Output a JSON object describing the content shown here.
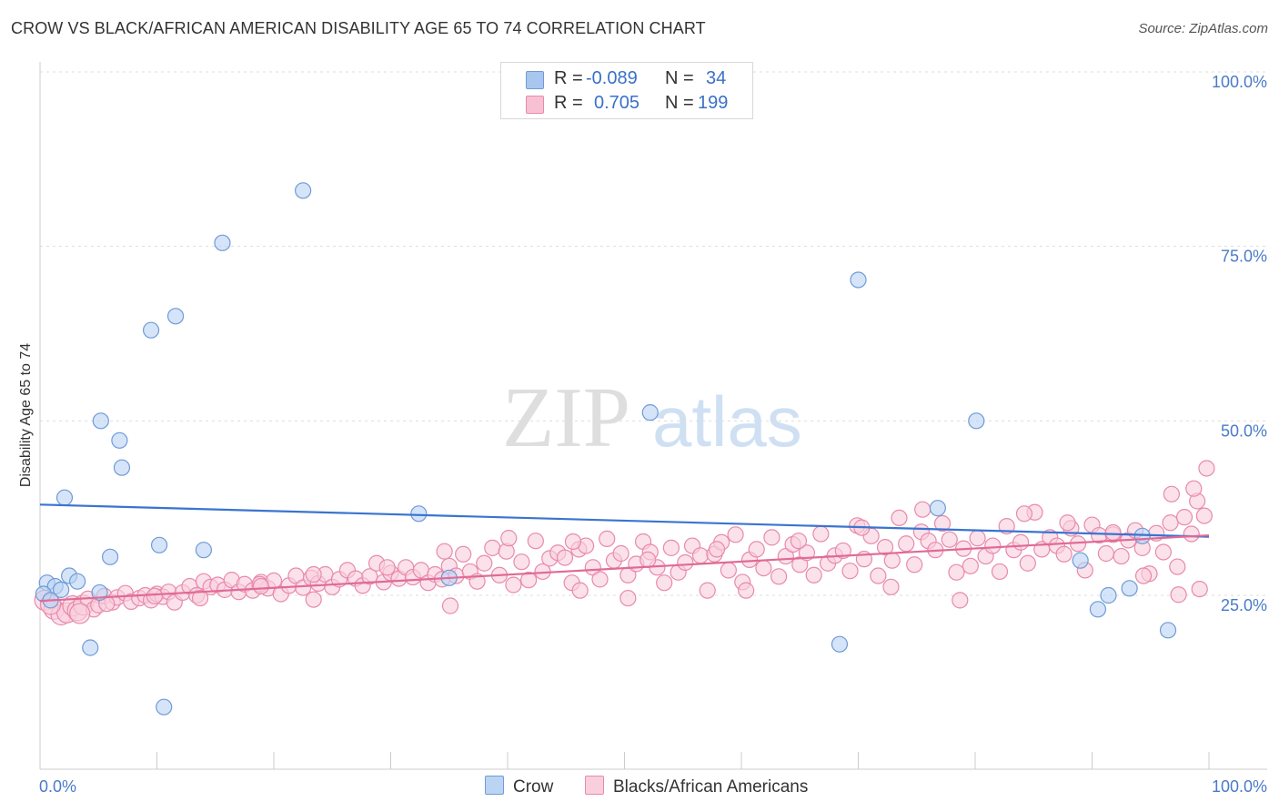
{
  "title": "CROW VS BLACK/AFRICAN AMERICAN DISABILITY AGE 65 TO 74 CORRELATION CHART",
  "source": "Source: ZipAtlas.com",
  "watermark": {
    "zip": "ZIP",
    "atlas": "atlas"
  },
  "legend_top": [
    {
      "r_label": "R =",
      "r_value": "-0.089",
      "n_label": "N =",
      "n_value": "34",
      "color": "#a9c6ef",
      "border": "#6f9bd6"
    },
    {
      "r_label": "R =",
      "r_value": "0.705",
      "n_label": "N =",
      "n_value": "199",
      "color": "#f7c1d3",
      "border": "#e88aab"
    }
  ],
  "legend_bottom": [
    {
      "label": "Crow",
      "color": "#bcd4f3",
      "border": "#6f9bd6"
    },
    {
      "label": "Blacks/African Americans",
      "color": "#f9cfdd",
      "border": "#e88aab"
    }
  ],
  "chart_data": {
    "type": "scatter",
    "ylabel": "Disability Age 65 to 74",
    "xlabel": "",
    "x_tick_labels": [
      "0.0%",
      "100.0%"
    ],
    "y_tick_labels": [
      "25.0%",
      "50.0%",
      "75.0%",
      "100.0%"
    ],
    "y_ticks": [
      25,
      50,
      75,
      100
    ],
    "xlim": [
      0,
      100
    ],
    "ylim": [
      0,
      102
    ],
    "grid": "horizontal dashed",
    "series": [
      {
        "name": "Crow",
        "color": "#6f9bd6",
        "fill": "#bcd4f3",
        "trend": {
          "x": [
            0,
            100
          ],
          "y": [
            38.0,
            33.4
          ]
        },
        "points": [
          [
            22.5,
            83
          ],
          [
            15.6,
            75.5
          ],
          [
            11.6,
            65
          ],
          [
            9.5,
            63
          ],
          [
            5.2,
            50
          ],
          [
            6.8,
            47.2
          ],
          [
            7.0,
            43.3
          ],
          [
            2.1,
            39
          ],
          [
            10.2,
            32.2
          ],
          [
            14.0,
            31.5
          ],
          [
            6.0,
            30.5
          ],
          [
            2.5,
            27.8
          ],
          [
            0.6,
            26.8
          ],
          [
            1.3,
            26.3
          ],
          [
            3.2,
            27.0
          ],
          [
            1.8,
            25.8
          ],
          [
            5.1,
            25.4
          ],
          [
            4.3,
            17.5
          ],
          [
            10.6,
            9.0
          ],
          [
            0.3,
            25.2
          ],
          [
            52.2,
            51.2
          ],
          [
            32.4,
            36.7
          ],
          [
            70.0,
            70.2
          ],
          [
            80.1,
            50.0
          ],
          [
            76.8,
            37.5
          ],
          [
            94.3,
            33.5
          ],
          [
            89.0,
            30.0
          ],
          [
            91.4,
            25.0
          ],
          [
            90.5,
            23.0
          ],
          [
            93.2,
            26.0
          ],
          [
            96.5,
            20.0
          ],
          [
            68.4,
            18.0
          ],
          [
            35.0,
            27.5
          ],
          [
            0.9,
            24.3
          ]
        ]
      },
      {
        "name": "Blacks/African Americans",
        "color": "#e88aab",
        "fill": "#f9cfdd",
        "trend": {
          "x": [
            0,
            100
          ],
          "y": [
            24.2,
            33.6
          ]
        },
        "points": [
          [
            0.4,
            24.3
          ],
          [
            1.2,
            23.0
          ],
          [
            1.8,
            22.2
          ],
          [
            2.3,
            22.5
          ],
          [
            2.8,
            23.5
          ],
          [
            3.2,
            22.8
          ],
          [
            3.7,
            23.6
          ],
          [
            4.1,
            24.5
          ],
          [
            4.6,
            23.0
          ],
          [
            5.0,
            23.6
          ],
          [
            5.5,
            24.9
          ],
          [
            6.2,
            24.0
          ],
          [
            6.6,
            24.7
          ],
          [
            7.3,
            25.3
          ],
          [
            7.8,
            24.1
          ],
          [
            8.5,
            24.6
          ],
          [
            9.0,
            25.0
          ],
          [
            9.5,
            24.3
          ],
          [
            10.0,
            25.2
          ],
          [
            10.5,
            24.8
          ],
          [
            11.0,
            25.5
          ],
          [
            11.5,
            24.0
          ],
          [
            12.2,
            25.4
          ],
          [
            12.8,
            26.3
          ],
          [
            13.4,
            25.0
          ],
          [
            14.0,
            27.0
          ],
          [
            14.6,
            26.2
          ],
          [
            15.2,
            26.5
          ],
          [
            15.8,
            25.8
          ],
          [
            16.4,
            27.2
          ],
          [
            17.0,
            25.5
          ],
          [
            17.5,
            26.6
          ],
          [
            18.2,
            25.7
          ],
          [
            18.9,
            26.9
          ],
          [
            19.5,
            26.0
          ],
          [
            20.0,
            27.1
          ],
          [
            20.6,
            25.2
          ],
          [
            21.3,
            26.4
          ],
          [
            21.9,
            27.8
          ],
          [
            22.5,
            26.1
          ],
          [
            23.2,
            27.5
          ],
          [
            23.8,
            26.7
          ],
          [
            24.4,
            28.0
          ],
          [
            25.0,
            26.2
          ],
          [
            25.6,
            27.3
          ],
          [
            26.3,
            28.6
          ],
          [
            27.0,
            27.4
          ],
          [
            27.6,
            26.4
          ],
          [
            28.2,
            27.7
          ],
          [
            28.8,
            29.6
          ],
          [
            29.4,
            26.9
          ],
          [
            30.0,
            28.2
          ],
          [
            30.7,
            27.4
          ],
          [
            31.3,
            29.0
          ],
          [
            31.9,
            27.6
          ],
          [
            32.6,
            28.6
          ],
          [
            33.2,
            26.8
          ],
          [
            33.8,
            28.0
          ],
          [
            34.4,
            27.3
          ],
          [
            35.0,
            29.2
          ],
          [
            35.6,
            27.8
          ],
          [
            36.2,
            30.9
          ],
          [
            36.8,
            28.4
          ],
          [
            37.4,
            27.0
          ],
          [
            38.0,
            29.6
          ],
          [
            38.7,
            31.8
          ],
          [
            39.3,
            27.9
          ],
          [
            39.9,
            31.3
          ],
          [
            40.5,
            26.5
          ],
          [
            41.2,
            29.8
          ],
          [
            41.8,
            27.2
          ],
          [
            42.4,
            32.8
          ],
          [
            43.0,
            28.4
          ],
          [
            43.6,
            30.3
          ],
          [
            44.3,
            31.1
          ],
          [
            44.9,
            30.4
          ],
          [
            45.5,
            26.8
          ],
          [
            46.1,
            31.6
          ],
          [
            46.7,
            32.1
          ],
          [
            47.3,
            29.0
          ],
          [
            47.9,
            27.3
          ],
          [
            48.5,
            33.1
          ],
          [
            49.1,
            30.0
          ],
          [
            49.7,
            31.0
          ],
          [
            50.3,
            27.9
          ],
          [
            51.0,
            29.5
          ],
          [
            51.6,
            32.7
          ],
          [
            52.2,
            31.2
          ],
          [
            52.8,
            29.0
          ],
          [
            53.4,
            26.8
          ],
          [
            54.0,
            31.8
          ],
          [
            54.6,
            28.3
          ],
          [
            55.2,
            29.7
          ],
          [
            55.8,
            32.1
          ],
          [
            56.5,
            30.7
          ],
          [
            57.1,
            25.7
          ],
          [
            57.7,
            30.9
          ],
          [
            58.3,
            32.6
          ],
          [
            58.9,
            28.6
          ],
          [
            59.5,
            33.7
          ],
          [
            60.1,
            26.9
          ],
          [
            60.7,
            30.1
          ],
          [
            61.3,
            31.6
          ],
          [
            61.9,
            28.9
          ],
          [
            62.6,
            33.3
          ],
          [
            63.2,
            27.7
          ],
          [
            63.8,
            30.6
          ],
          [
            64.4,
            32.3
          ],
          [
            65.0,
            29.4
          ],
          [
            65.6,
            31.1
          ],
          [
            66.2,
            27.9
          ],
          [
            66.8,
            33.8
          ],
          [
            67.4,
            29.6
          ],
          [
            68.0,
            30.7
          ],
          [
            68.7,
            31.4
          ],
          [
            69.3,
            28.5
          ],
          [
            69.9,
            35.0
          ],
          [
            70.5,
            30.2
          ],
          [
            71.1,
            33.5
          ],
          [
            71.7,
            27.8
          ],
          [
            72.3,
            31.9
          ],
          [
            72.9,
            30.0
          ],
          [
            73.5,
            36.1
          ],
          [
            74.1,
            32.4
          ],
          [
            74.8,
            29.4
          ],
          [
            75.4,
            34.1
          ],
          [
            76.0,
            32.8
          ],
          [
            76.6,
            31.5
          ],
          [
            77.2,
            35.3
          ],
          [
            77.8,
            33.0
          ],
          [
            78.4,
            28.3
          ],
          [
            79.0,
            31.7
          ],
          [
            79.6,
            29.2
          ],
          [
            80.2,
            33.2
          ],
          [
            80.9,
            30.6
          ],
          [
            81.5,
            32.1
          ],
          [
            82.1,
            28.4
          ],
          [
            82.7,
            34.9
          ],
          [
            83.3,
            31.5
          ],
          [
            83.9,
            32.6
          ],
          [
            84.5,
            29.6
          ],
          [
            85.1,
            36.9
          ],
          [
            85.7,
            31.6
          ],
          [
            86.4,
            33.3
          ],
          [
            87.0,
            32.1
          ],
          [
            87.6,
            30.9
          ],
          [
            88.2,
            34.6
          ],
          [
            88.8,
            32.4
          ],
          [
            89.4,
            28.6
          ],
          [
            90.0,
            35.1
          ],
          [
            90.6,
            33.6
          ],
          [
            91.2,
            31.0
          ],
          [
            91.8,
            33.7
          ],
          [
            92.5,
            30.6
          ],
          [
            93.1,
            32.9
          ],
          [
            93.7,
            34.3
          ],
          [
            94.3,
            31.8
          ],
          [
            94.9,
            28.1
          ],
          [
            95.5,
            33.9
          ],
          [
            96.1,
            31.2
          ],
          [
            96.7,
            35.4
          ],
          [
            97.3,
            29.1
          ],
          [
            97.9,
            36.2
          ],
          [
            98.5,
            33.8
          ],
          [
            99.0,
            38.5
          ],
          [
            99.6,
            36.4
          ],
          [
            99.8,
            43.2
          ],
          [
            98.7,
            40.3
          ],
          [
            96.8,
            39.5
          ],
          [
            91.8,
            34.0
          ],
          [
            87.9,
            35.4
          ],
          [
            84.2,
            36.7
          ],
          [
            75.5,
            37.3
          ],
          [
            70.3,
            34.7
          ],
          [
            64.9,
            32.8
          ],
          [
            57.9,
            31.6
          ],
          [
            52.0,
            30.1
          ],
          [
            45.6,
            32.7
          ],
          [
            40.1,
            33.2
          ],
          [
            34.6,
            31.3
          ],
          [
            29.7,
            29.0
          ],
          [
            23.4,
            28.0
          ],
          [
            18.8,
            26.6
          ],
          [
            13.7,
            24.6
          ],
          [
            9.8,
            24.9
          ],
          [
            5.7,
            23.8
          ],
          [
            3.4,
            22.4
          ],
          [
            0.9,
            23.7
          ],
          [
            46.2,
            25.7
          ],
          [
            35.1,
            23.5
          ],
          [
            23.4,
            24.4
          ],
          [
            18.9,
            26.3
          ],
          [
            50.3,
            24.6
          ],
          [
            60.4,
            25.7
          ],
          [
            72.8,
            26.2
          ],
          [
            78.7,
            24.3
          ],
          [
            94.4,
            27.8
          ],
          [
            97.4,
            25.1
          ],
          [
            99.2,
            25.9
          ]
        ]
      }
    ]
  }
}
